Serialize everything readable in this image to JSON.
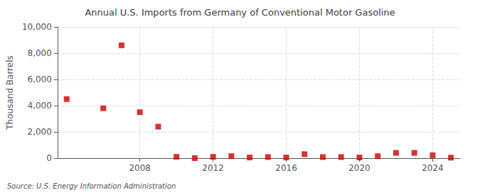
{
  "chart_data": {
    "type": "scatter",
    "title": "Annual U.S. Imports from Germany of Conventional Motor Gasoline",
    "ylabel": "Thousand Barrels",
    "annotation": "Source: U.S. Energy Information Administration",
    "x": [
      2004,
      2006,
      2007,
      2008,
      2009,
      2010,
      2011,
      2012,
      2013,
      2014,
      2015,
      2016,
      2017,
      2018,
      2019,
      2020,
      2021,
      2022,
      2023,
      2024,
      2025
    ],
    "values": [
      4500,
      3800,
      8600,
      3500,
      2400,
      100,
      0,
      100,
      150,
      50,
      80,
      50,
      300,
      80,
      80,
      50,
      150,
      400,
      400,
      220,
      40
    ],
    "color": "#cc0000",
    "marker": "square",
    "xlim": [
      2003.5,
      2025.5
    ],
    "xticks": [
      2008,
      2012,
      2016,
      2020,
      2024
    ],
    "ylim": [
      0,
      10000
    ],
    "yticks": [
      0,
      {
        "value": 2000,
        "label": "2,000"
      },
      {
        "value": 4000,
        "label": "4,000"
      },
      {
        "value": 6000,
        "label": "6,000"
      },
      {
        "value": 8000,
        "label": "8,000"
      },
      {
        "value": 10000,
        "label": "10,000"
      }
    ],
    "grid": true
  }
}
